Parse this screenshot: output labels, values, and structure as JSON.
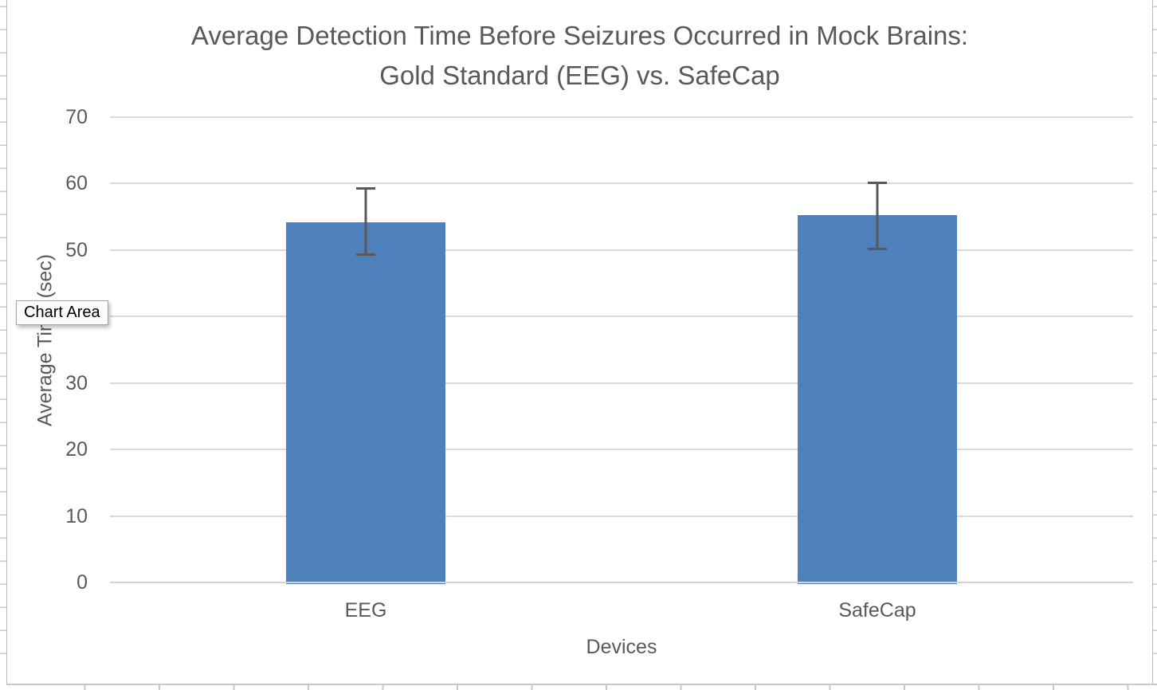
{
  "tooltip": {
    "label": "Chart Area"
  },
  "chart_data": {
    "type": "bar",
    "title": "Average Detection Time Before Seizures Occurred in Mock Brains: Gold Standard (EEG) vs. SafeCap",
    "title_line1": "Average Detection Time Before Seizures Occurred in Mock Brains:",
    "title_line2": "Gold Standard (EEG) vs. SafeCap",
    "xlabel": "Devices",
    "ylabel": "Average Time (sec)",
    "categories": [
      "EEG",
      "SafeCap"
    ],
    "values": [
      54.2,
      55.2
    ],
    "error_high": [
      59.4,
      60.3
    ],
    "error_low": [
      49.1,
      50.0
    ],
    "yticks": [
      0,
      10,
      20,
      30,
      40,
      50,
      60,
      70
    ],
    "ylim": [
      0,
      70
    ],
    "grid": true,
    "legend": "none",
    "bar_color": "#4E80BC",
    "error_color": "#595959",
    "text_color": "#595959",
    "gridline_color": "#dadada"
  }
}
